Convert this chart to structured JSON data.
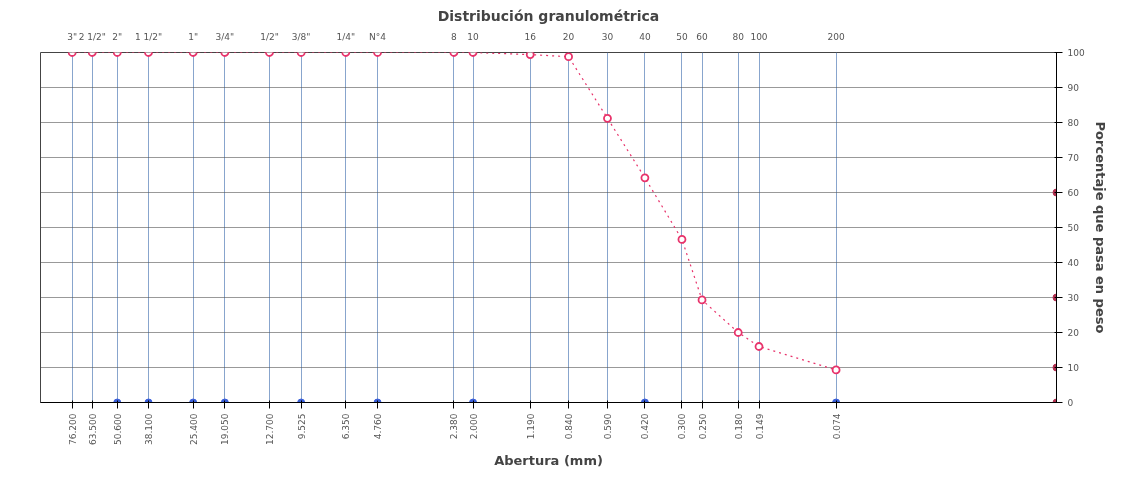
{
  "chart_data": {
    "type": "line",
    "title": "Distribución granulométrica",
    "xlabel": "Abertura (mm)",
    "ylabel": "Porcentaje que pasa en peso",
    "log": "x",
    "grid": true,
    "marker": "circle",
    "xlim": [
      101.6,
      0.01
    ],
    "ylim": [
      0,
      100
    ],
    "yticks": [
      0,
      10,
      20,
      30,
      40,
      50,
      60,
      70,
      80,
      90,
      100
    ],
    "xticks": [
      {
        "value": 76.2,
        "label": "76.200"
      },
      {
        "value": 63.5,
        "label": "63.500"
      },
      {
        "value": 50.6,
        "label": "50.600"
      },
      {
        "value": 38.1,
        "label": "38.100"
      },
      {
        "value": 25.4,
        "label": "25.400"
      },
      {
        "value": 19.05,
        "label": "19.050"
      },
      {
        "value": 12.7,
        "label": "12.700"
      },
      {
        "value": 9.525,
        "label": "9.525"
      },
      {
        "value": 6.35,
        "label": "6.350"
      },
      {
        "value": 4.76,
        "label": "4.760"
      },
      {
        "value": 2.38,
        "label": "2.380"
      },
      {
        "value": 2.0,
        "label": "2.000"
      },
      {
        "value": 1.19,
        "label": "1.190"
      },
      {
        "value": 0.84,
        "label": "0.840"
      },
      {
        "value": 0.59,
        "label": "0.590"
      },
      {
        "value": 0.42,
        "label": "0.420"
      },
      {
        "value": 0.3,
        "label": "0.300"
      },
      {
        "value": 0.25,
        "label": "0.250"
      },
      {
        "value": 0.18,
        "label": "0.180"
      },
      {
        "value": 0.149,
        "label": "0.149"
      },
      {
        "value": 0.074,
        "label": "0.074"
      }
    ],
    "annotations": [
      "3\"",
      "2 1/2\"",
      "2\"",
      "1 1/2\"",
      "1\"",
      "3/4\"",
      "1/2\"",
      "3/8\"",
      "1/4\"",
      "N°4",
      "8",
      "10",
      "16",
      "20",
      "30",
      "40",
      "50",
      "60",
      "80",
      "100",
      "200"
    ],
    "series": [
      {
        "line_style": "dotted",
        "color": "#e8336b",
        "x": [
          76.2,
          63.5,
          50.6,
          38.1,
          25.4,
          19.05,
          12.7,
          9.525,
          6.35,
          4.76,
          2.38,
          2.0,
          1.19,
          0.84,
          0.59,
          0.42,
          0.3,
          0.25,
          0.18,
          0.149,
          0.074
        ],
        "values": [
          100,
          100,
          100,
          100,
          100,
          100,
          100,
          100,
          100,
          100,
          100,
          100,
          99.4,
          98.8,
          81.2,
          64.2,
          46.6,
          29.3,
          20,
          16,
          9.3
        ]
      },
      {
        "type": "scatter",
        "color": "#3a5fd9",
        "x": [
          50.6,
          38.1,
          25.4,
          19.05,
          9.525,
          4.76,
          2.0,
          0.42,
          0.074
        ],
        "values": [
          0,
          0,
          0,
          0,
          0,
          0,
          0,
          0,
          0
        ]
      },
      {
        "type": "scatter",
        "color": "#b03050",
        "x": [
          0.01,
          0.01,
          0.01,
          0.01
        ],
        "values": [
          0,
          10,
          30,
          60
        ]
      }
    ]
  }
}
